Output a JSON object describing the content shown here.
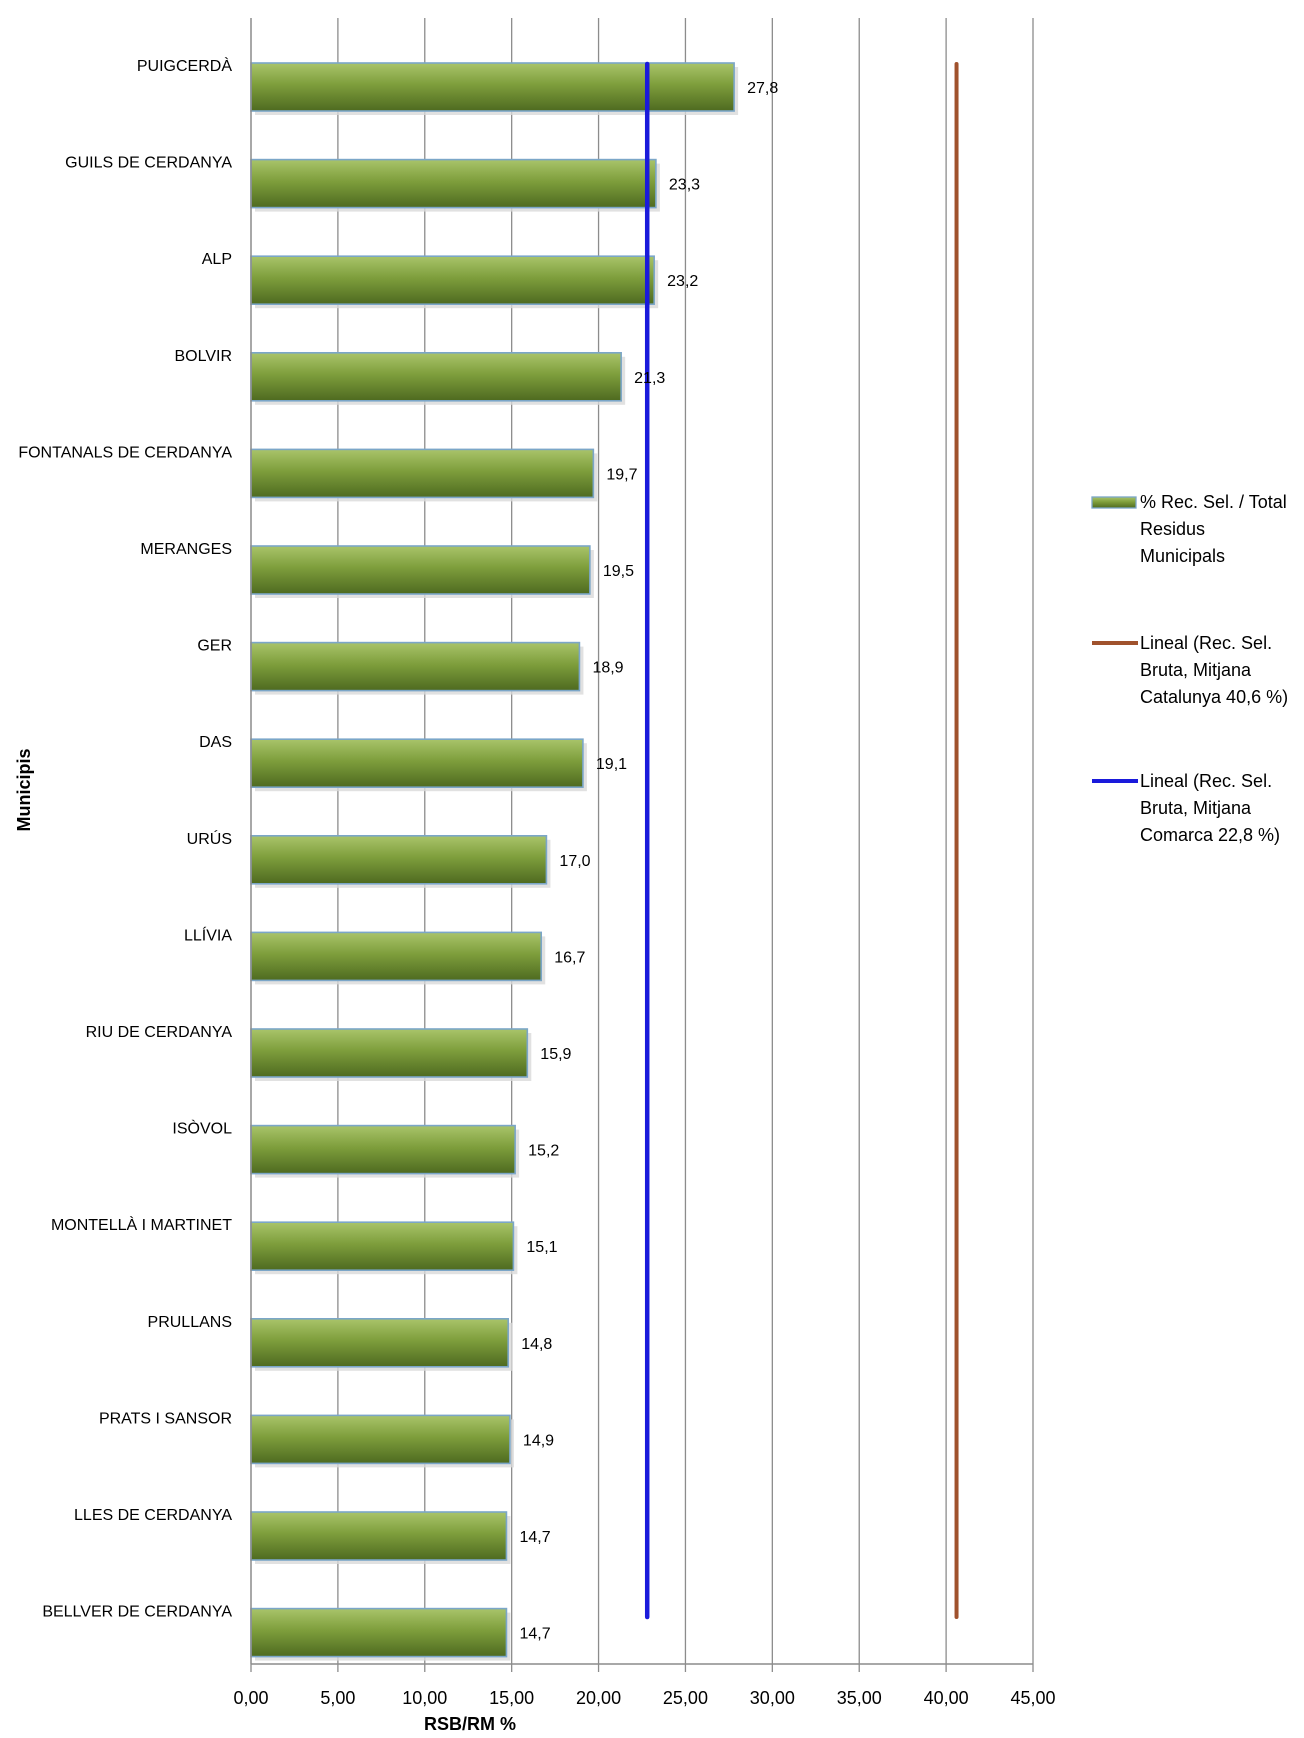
{
  "chart_data": {
    "type": "bar",
    "orientation": "horizontal",
    "title": "",
    "xlabel": "RSB/RM %",
    "ylabel": "Municipis",
    "xlim": [
      0,
      45
    ],
    "x_ticks": [
      "0,00",
      "5,00",
      "10,00",
      "15,00",
      "20,00",
      "25,00",
      "30,00",
      "35,00",
      "40,00",
      "45,00"
    ],
    "x_tick_values": [
      0,
      5,
      10,
      15,
      20,
      25,
      30,
      35,
      40,
      45
    ],
    "grid": "vertical",
    "legend_position": "right",
    "categories": [
      "PUIGCERDÀ",
      "GUILS DE CERDANYA",
      "ALP",
      "BOLVIR",
      "FONTANALS DE CERDANYA",
      "MERANGES",
      "GER",
      "DAS",
      "URÚS",
      "LLÍVIA",
      "RIU DE CERDANYA",
      "ISÒVOL",
      "MONTELLÀ I MARTINET",
      "PRULLANS",
      "PRATS I SANSOR",
      "LLES DE CERDANYA",
      "BELLVER DE CERDANYA"
    ],
    "series": [
      {
        "name": "% Rec. Sel. / Total Residus Municipals",
        "legend_lines": [
          "% Rec. Sel. / Total",
          "Residus",
          "Municipals"
        ],
        "color": "#77933C",
        "values": [
          27.8,
          23.3,
          23.2,
          21.3,
          19.7,
          19.5,
          18.9,
          19.1,
          17.0,
          16.7,
          15.9,
          15.2,
          15.1,
          14.8,
          14.9,
          14.7,
          14.7
        ],
        "value_labels": [
          "27,8",
          "23,3",
          "23,2",
          "21,3",
          "19,7",
          "19,5",
          "18,9",
          "19,1",
          "17,0",
          "16,7",
          "15,9",
          "15,2",
          "15,1",
          "14,8",
          "14,9",
          "14,7",
          "14,7"
        ]
      }
    ],
    "reference_lines": [
      {
        "name": "Lineal (Rec. Sel. Bruta, Mitjana Catalunya 40,6 %)",
        "legend_lines": [
          "Lineal (Rec. Sel.",
          "Bruta, Mitjana",
          "Catalunya 40,6 %)"
        ],
        "value": 40.6,
        "color": "#A0522D"
      },
      {
        "name": "Lineal (Rec. Sel. Bruta, Mitjana Comarca 22,8 %)",
        "legend_lines": [
          "Lineal (Rec. Sel.",
          "Bruta, Mitjana",
          "Comarca 22,8 %)"
        ],
        "value": 22.8,
        "color": "#1A1ADB"
      }
    ]
  }
}
